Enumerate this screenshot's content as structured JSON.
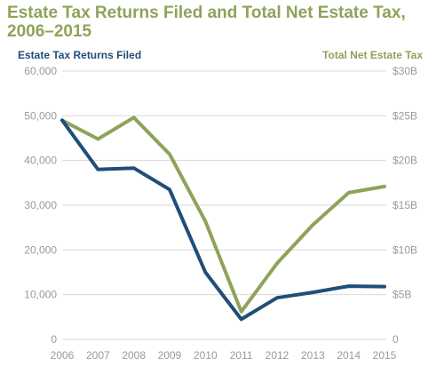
{
  "chart_data": {
    "type": "line",
    "title": "Estate Tax Returns Filed and Total Net Estate Tax, 2006–2015",
    "x": [
      "2006",
      "2007",
      "2008",
      "2009",
      "2010",
      "2011",
      "2012",
      "2013",
      "2014",
      "2015"
    ],
    "y_left": {
      "label": "Estate Tax Returns Filed",
      "range": [
        0,
        60000
      ],
      "ticks": [
        "0",
        "10,000",
        "20,000",
        "30,000",
        "40,000",
        "50,000",
        "60,000"
      ]
    },
    "y_right": {
      "label": "Total Net Estate Tax",
      "range": [
        0,
        30
      ],
      "ticks": [
        "0",
        "$5B",
        "$10B",
        "$15B",
        "$20B",
        "$25B",
        "$30B"
      ]
    },
    "series": [
      {
        "name": "Estate Tax Returns Filed",
        "axis": "left",
        "color": "#1f4e79",
        "values": [
          49000,
          38000,
          38300,
          33500,
          15000,
          4500,
          9300,
          10500,
          11900,
          11800
        ]
      },
      {
        "name": "Total Net Estate Tax",
        "axis": "right",
        "color": "#8ea35a",
        "values": [
          24.5,
          22.4,
          24.8,
          20.7,
          13.2,
          3.1,
          8.5,
          12.8,
          16.4,
          17.1
        ]
      }
    ],
    "grid": "horizontal",
    "colors": {
      "title": "#8ea35a",
      "left_axis_label": "#1f4e79",
      "right_axis_label": "#8ea35a",
      "tick_text": "#9a9a9a",
      "gridline": "#d9d9d9"
    }
  }
}
